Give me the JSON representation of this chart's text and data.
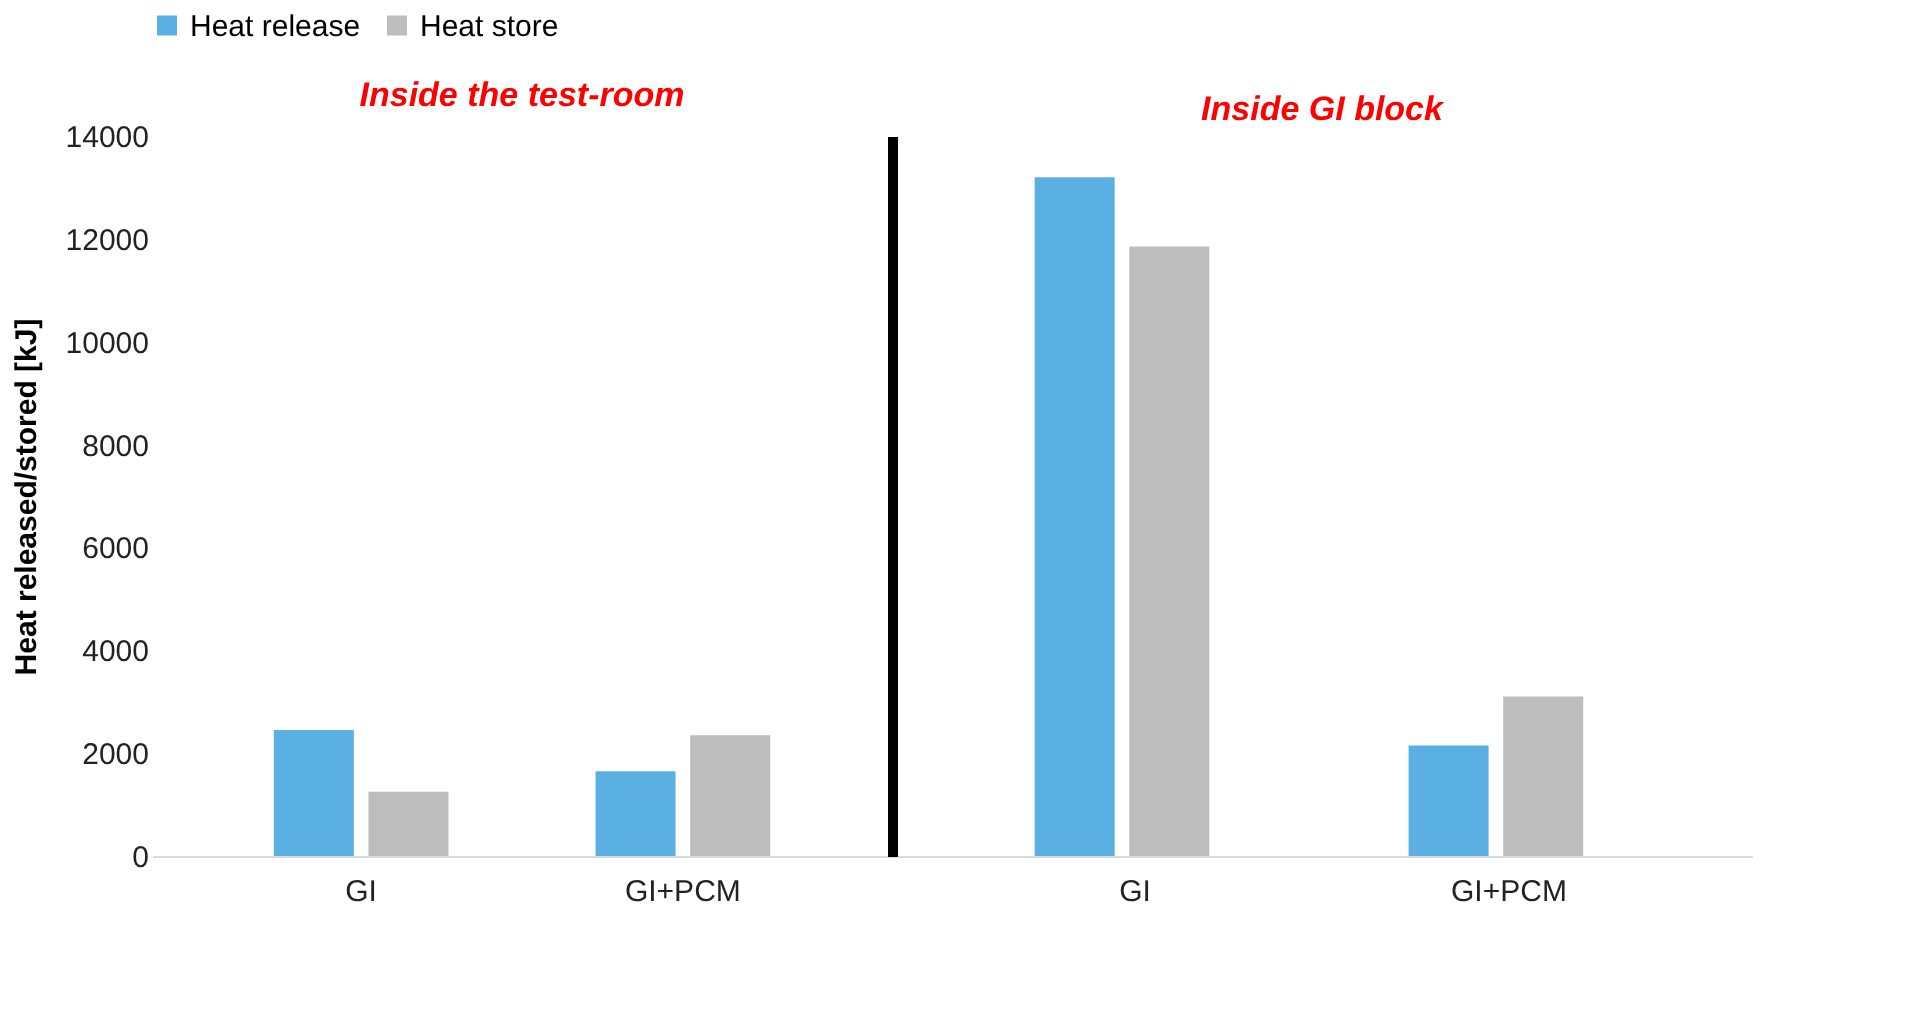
{
  "chart_data": [
    {
      "type": "bar",
      "title": "Inside the test-room",
      "ylabel": "Heat released/stored [kJ]",
      "categories": [
        "GI",
        "GI+PCM"
      ],
      "series": [
        {
          "name": "Heat release",
          "color": "#5ab0e2",
          "values": [
            2450,
            1650
          ]
        },
        {
          "name": "Heat store",
          "color": "#bdbdbd",
          "values": [
            1250,
            2350
          ]
        }
      ],
      "ylim": [
        0,
        14000
      ],
      "yticks": [
        0,
        2000,
        4000,
        6000,
        8000,
        10000,
        12000,
        14000
      ],
      "grid": false,
      "legend": "top"
    },
    {
      "type": "bar",
      "title": "Inside GI block",
      "categories": [
        "GI",
        "GI+PCM"
      ],
      "series": [
        {
          "name": "Heat release",
          "color": "#5ab0e2",
          "values": [
            13200,
            2150
          ]
        },
        {
          "name": "Heat store",
          "color": "#bdbdbd",
          "values": [
            11850,
            3100
          ]
        }
      ],
      "ylim": [
        0,
        14000
      ],
      "yticks": [
        0,
        2000,
        4000,
        6000,
        8000,
        10000,
        12000,
        14000
      ],
      "grid": false,
      "tick_labels": "x"
    }
  ]
}
